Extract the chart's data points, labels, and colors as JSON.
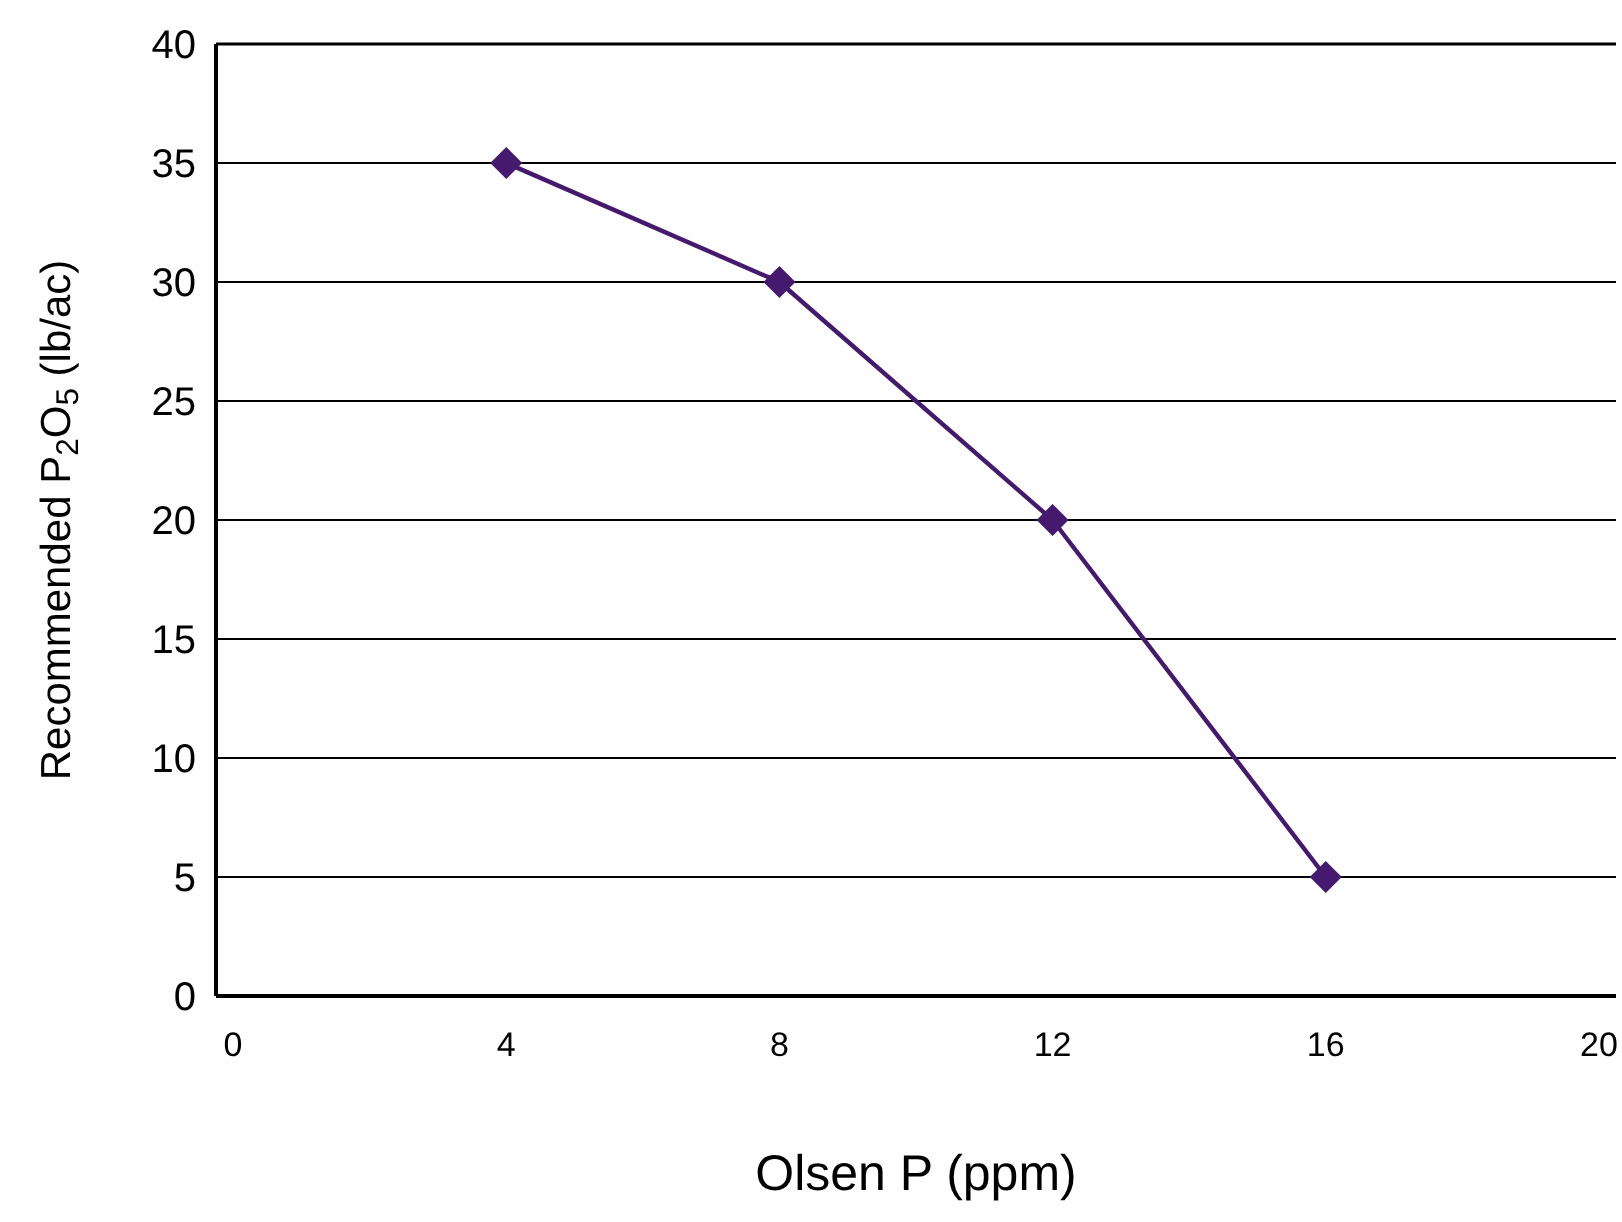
{
  "chart_data": {
    "type": "line",
    "xlabel": "Olsen P (ppm)",
    "ylabel": "Recommended P$_{2}$O$_{5}$ (lb/ac)",
    "x": [
      4,
      8,
      12,
      16
    ],
    "series": [
      {
        "color": "#45196e",
        "values": [
          35,
          30,
          20,
          5
        ]
      }
    ],
    "xlim": [
      -0.25,
      20.25
    ],
    "xticks": [
      0,
      4,
      8,
      12,
      16,
      20
    ],
    "ylim": [
      0,
      40
    ],
    "yticks": [
      0,
      5,
      10,
      15,
      20,
      25,
      30,
      35,
      40
    ],
    "grid": "y",
    "marker": "diamond",
    "line_style": "solid"
  }
}
